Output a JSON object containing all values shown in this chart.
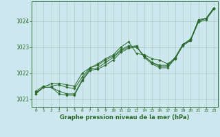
{
  "bg_color": "#cce8ee",
  "grid_color": "#aacccc",
  "line_color": "#2d6a2d",
  "marker_color": "#2d6a2d",
  "xlabel": "Graphe pression niveau de la mer (hPa)",
  "xlim": [
    -0.5,
    23.5
  ],
  "ylim": [
    1020.7,
    1024.75
  ],
  "yticks": [
    1021,
    1022,
    1023,
    1024
  ],
  "xticks": [
    0,
    1,
    2,
    3,
    4,
    5,
    6,
    7,
    8,
    9,
    10,
    11,
    12,
    13,
    14,
    15,
    16,
    17,
    18,
    19,
    20,
    21,
    22,
    23
  ],
  "series": [
    [
      1021.2,
      1021.45,
      1021.45,
      1021.2,
      1021.15,
      1021.15,
      1021.7,
      1022.1,
      1022.15,
      1022.3,
      1022.5,
      1022.8,
      1022.95,
      1023.0,
      1022.65,
      1022.4,
      1022.25,
      1022.25,
      1022.6,
      1023.1,
      1023.3,
      1024.0,
      1024.1,
      1024.5
    ],
    [
      1021.25,
      1021.45,
      1021.45,
      1021.3,
      1021.2,
      1021.2,
      1021.75,
      1022.15,
      1022.2,
      1022.4,
      1022.6,
      1022.85,
      1023.0,
      1023.05,
      1022.6,
      1022.35,
      1022.2,
      1022.2,
      1022.55,
      1023.05,
      1023.25,
      1023.95,
      1024.05,
      1024.45
    ],
    [
      1021.3,
      1021.5,
      1021.5,
      1021.55,
      1021.45,
      1021.4,
      1021.85,
      1022.2,
      1022.3,
      1022.5,
      1022.65,
      1022.9,
      1023.05,
      1023.0,
      1022.65,
      1022.4,
      1022.3,
      1022.3,
      1022.6,
      1023.1,
      1023.3,
      1024.0,
      1024.1,
      1024.5
    ],
    [
      1021.2,
      1021.45,
      1021.6,
      1021.6,
      1021.55,
      1021.5,
      1022.0,
      1022.2,
      1022.35,
      1022.55,
      1022.7,
      1023.0,
      1023.2,
      1022.75,
      1022.7,
      1022.55,
      1022.5,
      1022.35,
      1022.55,
      1023.1,
      1023.25,
      1024.05,
      1024.1,
      1024.5
    ]
  ],
  "figsize": [
    3.2,
    2.0
  ],
  "dpi": 100
}
